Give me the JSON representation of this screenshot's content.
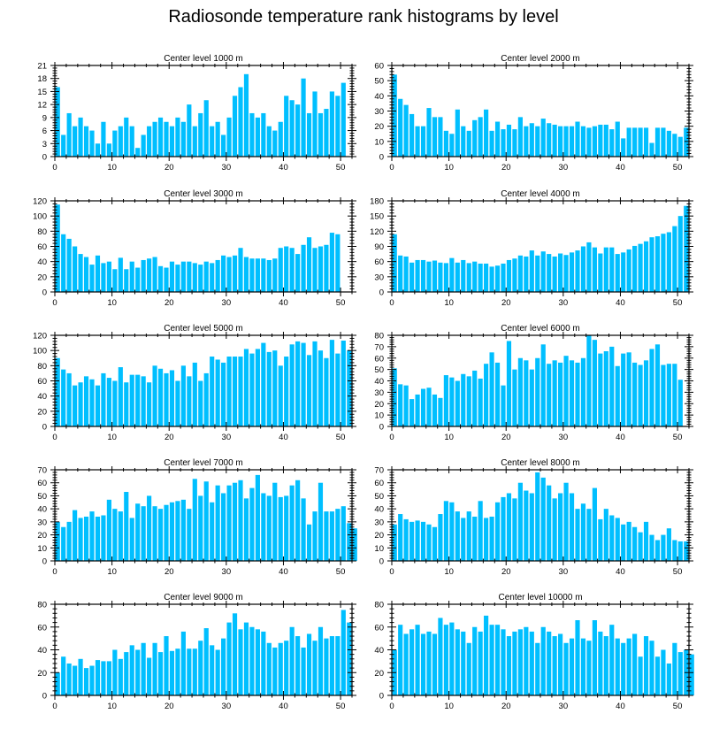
{
  "title": "Radiosonde temperature rank histograms by level",
  "colors": {
    "bar": "#00bfff",
    "axis": "#000000"
  },
  "chart_data": [
    {
      "type": "bar",
      "title": "Center level 1000 m",
      "ylim": [
        0,
        21
      ],
      "yticks": [
        0,
        3,
        6,
        9,
        12,
        15,
        18,
        21
      ],
      "xticks": [
        0,
        10,
        20,
        30,
        40,
        50
      ],
      "xlim": [
        0,
        52
      ],
      "values": [
        16,
        5,
        10,
        7,
        9,
        7,
        6,
        3,
        8,
        3,
        6,
        7,
        9,
        7,
        2,
        5,
        7,
        8,
        9,
        8,
        7,
        9,
        8,
        12,
        7,
        10,
        13,
        7,
        8,
        5,
        9,
        14,
        16,
        19,
        10,
        9,
        10,
        7,
        6,
        8,
        14,
        13,
        12,
        18,
        10,
        15,
        10,
        11,
        15,
        14,
        17
      ]
    },
    {
      "type": "bar",
      "title": "Center level 2000 m",
      "ylim": [
        0,
        60
      ],
      "yticks": [
        0,
        10,
        20,
        30,
        40,
        50,
        60
      ],
      "xticks": [
        0,
        10,
        20,
        30,
        40,
        50
      ],
      "xlim": [
        0,
        52
      ],
      "values": [
        54,
        38,
        34,
        28,
        20,
        20,
        32,
        26,
        26,
        17,
        15,
        31,
        20,
        17,
        24,
        26,
        31,
        17,
        23,
        18,
        21,
        18,
        26,
        20,
        22,
        20,
        25,
        22,
        21,
        20,
        20,
        20,
        23,
        20,
        19,
        20,
        21,
        21,
        18,
        23,
        12,
        19,
        19,
        19,
        19,
        9,
        19,
        19,
        17,
        15,
        13,
        19
      ]
    },
    {
      "type": "bar",
      "title": "Center level 3000 m",
      "ylim": [
        0,
        120
      ],
      "yticks": [
        0,
        20,
        40,
        60,
        80,
        100,
        120
      ],
      "xticks": [
        0,
        10,
        20,
        30,
        40,
        50
      ],
      "xlim": [
        0,
        52
      ],
      "values": [
        115,
        76,
        70,
        60,
        50,
        46,
        36,
        48,
        38,
        40,
        30,
        45,
        30,
        40,
        32,
        42,
        44,
        46,
        34,
        32,
        40,
        36,
        40,
        40,
        38,
        36,
        40,
        38,
        42,
        48,
        46,
        48,
        58,
        46,
        44,
        44,
        44,
        42,
        44,
        58,
        60,
        58,
        50,
        62,
        72,
        58,
        60,
        62,
        78,
        76
      ]
    },
    {
      "type": "bar",
      "title": "Center level 4000 m",
      "ylim": [
        0,
        180
      ],
      "yticks": [
        0,
        30,
        60,
        90,
        120,
        150,
        180
      ],
      "xticks": [
        0,
        10,
        20,
        30,
        40,
        50
      ],
      "xlim": [
        0,
        52
      ],
      "values": [
        114,
        72,
        70,
        58,
        63,
        63,
        60,
        62,
        58,
        57,
        67,
        58,
        63,
        57,
        60,
        56,
        56,
        50,
        52,
        56,
        63,
        66,
        72,
        70,
        82,
        72,
        80,
        75,
        70,
        76,
        73,
        78,
        82,
        90,
        98,
        88,
        76,
        88,
        88,
        75,
        78,
        84,
        91,
        95,
        100,
        108,
        110,
        115,
        118,
        130,
        150,
        170
      ]
    },
    {
      "type": "bar",
      "title": "Center level 5000 m",
      "ylim": [
        0,
        120
      ],
      "yticks": [
        0,
        20,
        40,
        60,
        80,
        100,
        120
      ],
      "xticks": [
        0,
        10,
        20,
        30,
        40,
        50
      ],
      "xlim": [
        0,
        52
      ],
      "values": [
        90,
        75,
        70,
        54,
        58,
        66,
        62,
        54,
        70,
        64,
        60,
        78,
        58,
        68,
        68,
        66,
        58,
        80,
        76,
        70,
        74,
        60,
        80,
        66,
        84,
        60,
        70,
        92,
        88,
        84,
        92,
        92,
        92,
        102,
        96,
        102,
        110,
        98,
        100,
        80,
        92,
        108,
        112,
        110,
        94,
        112,
        100,
        90,
        114,
        96,
        113,
        100
      ]
    },
    {
      "type": "bar",
      "title": "Center level 6000 m",
      "ylim": [
        0,
        80
      ],
      "yticks": [
        0,
        10,
        20,
        30,
        40,
        50,
        60,
        70,
        80
      ],
      "xticks": [
        0,
        10,
        20,
        30,
        40,
        50
      ],
      "xlim": [
        0,
        52
      ],
      "values": [
        51,
        37,
        36,
        24,
        28,
        33,
        34,
        28,
        25,
        45,
        43,
        40,
        46,
        44,
        49,
        42,
        55,
        65,
        56,
        36,
        75,
        50,
        60,
        58,
        50,
        60,
        72,
        55,
        58,
        56,
        62,
        58,
        56,
        60,
        80,
        76,
        64,
        66,
        70,
        53,
        64,
        65,
        56,
        54,
        58,
        68,
        72,
        54,
        55,
        55,
        41
      ]
    },
    {
      "type": "bar",
      "title": "Center level 7000 m",
      "ylim": [
        0,
        70
      ],
      "yticks": [
        0,
        10,
        20,
        30,
        40,
        50,
        60,
        70
      ],
      "xticks": [
        0,
        10,
        20,
        30,
        40,
        50
      ],
      "xlim": [
        0,
        52
      ],
      "values": [
        30,
        26,
        30,
        39,
        33,
        34,
        38,
        34,
        35,
        47,
        40,
        38,
        53,
        33,
        44,
        42,
        50,
        42,
        40,
        43,
        45,
        46,
        47,
        40,
        63,
        50,
        61,
        45,
        58,
        52,
        58,
        60,
        62,
        48,
        56,
        66,
        52,
        50,
        60,
        49,
        50,
        58,
        62,
        48,
        28,
        38,
        60,
        38,
        38,
        40,
        42,
        29,
        25
      ]
    },
    {
      "type": "bar",
      "title": "Center level 8000 m",
      "ylim": [
        0,
        70
      ],
      "yticks": [
        0,
        10,
        20,
        30,
        40,
        50,
        60,
        70
      ],
      "xticks": [
        0,
        10,
        20,
        30,
        40,
        50
      ],
      "xlim": [
        0,
        52
      ],
      "values": [
        28,
        36,
        32,
        30,
        31,
        30,
        28,
        26,
        36,
        46,
        45,
        38,
        33,
        38,
        34,
        46,
        33,
        34,
        45,
        49,
        52,
        48,
        60,
        54,
        52,
        68,
        64,
        58,
        48,
        52,
        60,
        52,
        40,
        44,
        40,
        56,
        32,
        40,
        35,
        33,
        28,
        30,
        26,
        22,
        30,
        20,
        16,
        20,
        25,
        16,
        15,
        15
      ]
    },
    {
      "type": "bar",
      "title": "Center level 9000 m",
      "ylim": [
        0,
        80
      ],
      "yticks": [
        0,
        20,
        40,
        60,
        80
      ],
      "xticks": [
        0,
        10,
        20,
        30,
        40,
        50
      ],
      "xlim": [
        0,
        52
      ],
      "values": [
        20,
        34,
        28,
        26,
        32,
        24,
        26,
        31,
        30,
        30,
        40,
        32,
        38,
        44,
        40,
        46,
        33,
        46,
        38,
        52,
        39,
        41,
        56,
        41,
        41,
        48,
        59,
        44,
        40,
        50,
        64,
        72,
        58,
        64,
        60,
        58,
        56,
        46,
        42,
        46,
        48,
        60,
        52,
        42,
        54,
        48,
        60,
        50,
        52,
        52,
        75,
        64
      ]
    },
    {
      "type": "bar",
      "title": "Center level 10000 m",
      "ylim": [
        0,
        80
      ],
      "yticks": [
        0,
        20,
        40,
        60,
        80
      ],
      "xticks": [
        0,
        10,
        20,
        30,
        40,
        50
      ],
      "xlim": [
        0,
        52
      ],
      "values": [
        40,
        62,
        54,
        58,
        62,
        54,
        56,
        54,
        68,
        62,
        64,
        58,
        56,
        46,
        60,
        56,
        70,
        62,
        62,
        58,
        52,
        56,
        58,
        60,
        56,
        46,
        60,
        56,
        52,
        54,
        46,
        50,
        66,
        50,
        48,
        66,
        56,
        52,
        62,
        50,
        46,
        50,
        54,
        34,
        52,
        48,
        34,
        40,
        28,
        46,
        38,
        40,
        36
      ]
    }
  ]
}
